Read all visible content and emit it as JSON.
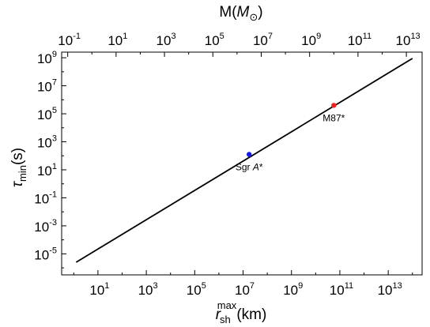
{
  "chart_data": {
    "type": "line",
    "xlabel": {
      "base": "r",
      "sub": "sh",
      "sup": "max",
      "unit": "(km)"
    },
    "ylabel": {
      "base": "τ",
      "sub": "min",
      "unit": "(s)"
    },
    "top_xlabel": {
      "prefix": "M(",
      "base": "M",
      "sub": "⊙",
      "suffix": ")"
    },
    "x_scale": "log",
    "y_scale": "log",
    "xlim_exp": [
      -0.5,
      14.4
    ],
    "ylim_exp": [
      -6.5,
      9.4
    ],
    "top_xlim_exp": [
      -1.25,
      13.65
    ],
    "x_tick_exponents": [
      1,
      3,
      5,
      7,
      9,
      11,
      13
    ],
    "x_tick_labels": [
      "10",
      "10",
      "10",
      "10",
      "10",
      "10",
      "10"
    ],
    "x_tick_sups": [
      "1",
      "3",
      "5",
      "7",
      "9",
      "11",
      "13"
    ],
    "y_tick_exponents": [
      -5,
      -3,
      -1,
      1,
      3,
      5,
      7,
      9
    ],
    "y_tick_labels": [
      "10",
      "10",
      "10",
      "10",
      "10",
      "10",
      "10",
      "10"
    ],
    "y_tick_sups": [
      "-5",
      "-3",
      "-1",
      "1",
      "3",
      "5",
      "7",
      "9"
    ],
    "top_tick_exponents": [
      -1,
      1,
      3,
      5,
      7,
      9,
      11,
      13
    ],
    "top_tick_labels": [
      "10",
      "10",
      "10",
      "10",
      "10",
      "10",
      "10",
      "10"
    ],
    "top_tick_sups": [
      "-1",
      "1",
      "3",
      "5",
      "7",
      "9",
      "11",
      "13"
    ],
    "grid": false,
    "series": [
      {
        "x_exp": [
          0.1,
          14.0
        ],
        "y_exp": [
          -5.6,
          8.95
        ],
        "color": "#000000"
      }
    ],
    "points": [
      {
        "label": "Sgr ",
        "label_italic": "A",
        "label_suffix": "*",
        "x_exp": 7.25,
        "y_exp": 2.1,
        "color": "#1a1aee"
      },
      {
        "label": "M87*",
        "label_italic": "",
        "label_suffix": "",
        "x_exp": 10.75,
        "y_exp": 5.6,
        "color": "#ee2020"
      }
    ]
  }
}
